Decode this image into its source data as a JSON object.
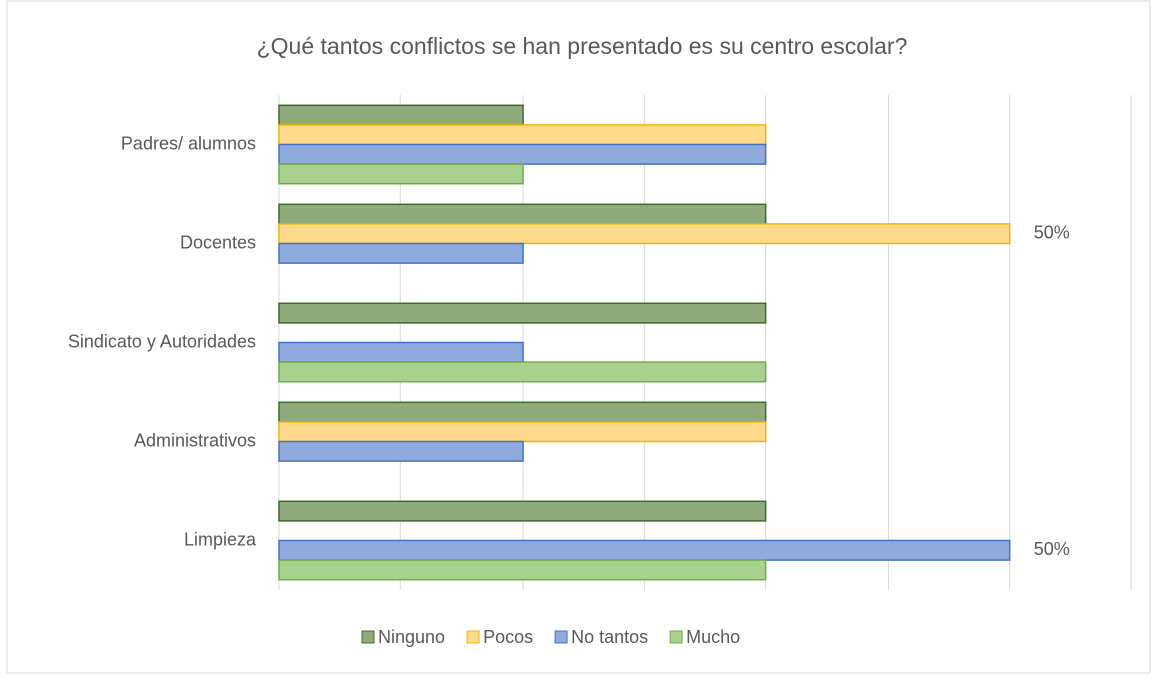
{
  "chart_data": {
    "type": "hbar",
    "title": "¿Qué tantos conflictos se han presentado es su centro escolar?",
    "categories": [
      "Padres/ alumnos",
      "Docentes",
      "Sindicato y Autoridades",
      "Administrativos",
      "Limpieza"
    ],
    "series": [
      {
        "name": "Ninguno",
        "color": "#8fab7c",
        "stroke": "#3f6b2a",
        "values": [
          16.7,
          33.3,
          33.3,
          33.3,
          33.3
        ]
      },
      {
        "name": "Pocos",
        "color": "#ffd98c",
        "stroke": "#f2b600",
        "values": [
          33.3,
          50,
          0,
          33.3,
          0
        ],
        "value_labels": [
          null,
          "50%",
          null,
          null,
          null
        ]
      },
      {
        "name": "No tantos",
        "color": "#8faadc",
        "stroke": "#4472c4",
        "values": [
          33.3,
          16.7,
          16.7,
          16.7,
          50
        ],
        "value_labels": [
          null,
          null,
          null,
          null,
          "50%"
        ]
      },
      {
        "name": "Mucho",
        "color": "#a9d18e",
        "stroke": "#70ad47",
        "values": [
          16.7,
          0,
          33.3,
          0,
          33.3
        ]
      }
    ],
    "xlim": [
      0,
      58.3
    ],
    "xticks": [
      0,
      8.3,
      16.7,
      25,
      33.3,
      41.7,
      50,
      58.3
    ],
    "grid": true
  }
}
